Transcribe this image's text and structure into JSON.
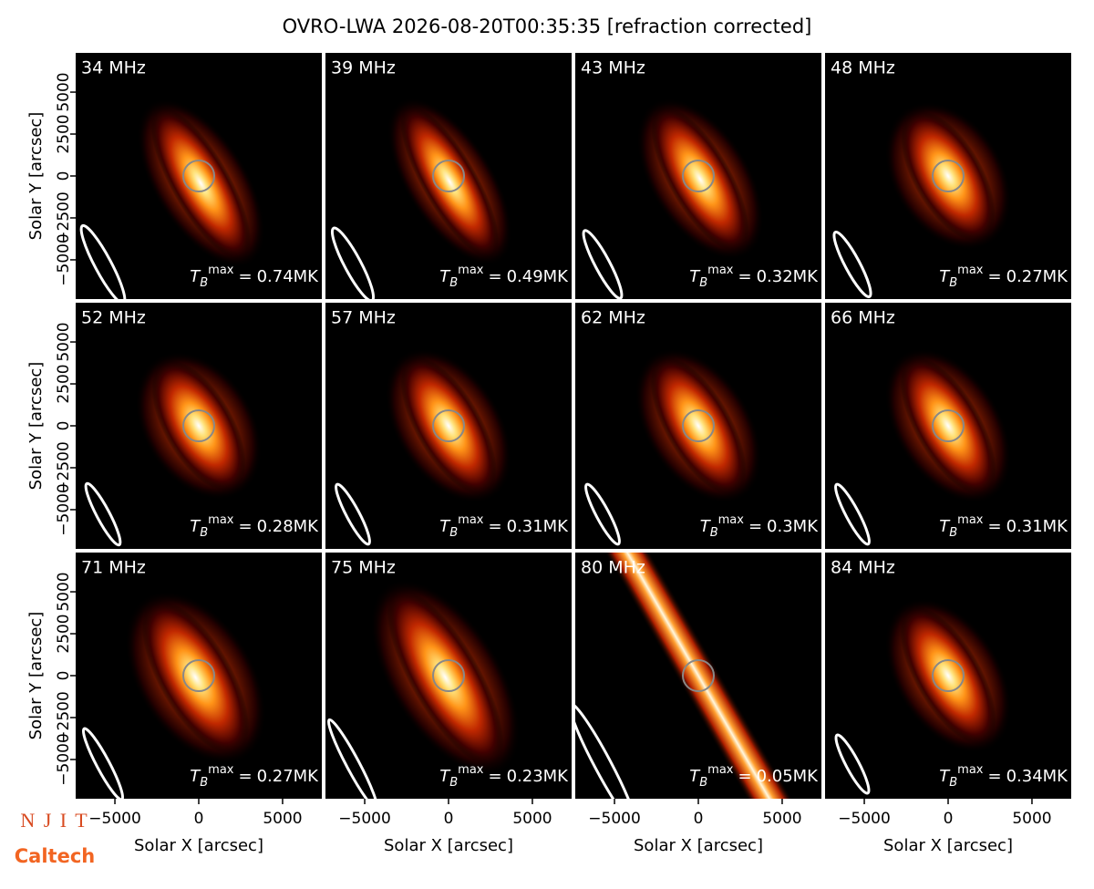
{
  "chart_data": {
    "type": "image-grid",
    "title": "OVRO-LWA 2026-08-20T00:35:35 [refraction corrected]",
    "xlabel": "Solar X [arcsec]",
    "ylabel": "Solar Y [arcsec]",
    "xlim": [
      -7340,
      7340
    ],
    "ylim": [
      -7340,
      7340
    ],
    "xticks": [
      {
        "value": -5000,
        "label": "−5000"
      },
      0,
      5000
    ],
    "yticks": [
      {
        "value": -5000,
        "label": "−5000"
      },
      {
        "value": -2500,
        "label": "−2500"
      },
      0,
      2500,
      5000
    ],
    "tmax_symbol": {
      "base": "T",
      "sub": "B",
      "sup": "max",
      "eq": "="
    },
    "panels": [
      {
        "label": "34 MHz",
        "tmax": "0.74MK"
      },
      {
        "label": "39 MHz",
        "tmax": "0.49MK"
      },
      {
        "label": "43 MHz",
        "tmax": "0.32MK"
      },
      {
        "label": "48 MHz",
        "tmax": "0.27MK"
      },
      {
        "label": "52 MHz",
        "tmax": "0.28MK"
      },
      {
        "label": "57 MHz",
        "tmax": "0.31MK"
      },
      {
        "label": "62 MHz",
        "tmax": "0.3MK"
      },
      {
        "label": "66 MHz",
        "tmax": "0.31MK"
      },
      {
        "label": "71 MHz",
        "tmax": "0.27MK"
      },
      {
        "label": "75 MHz",
        "tmax": "0.23MK"
      },
      {
        "label": "80 MHz",
        "tmax": "0.05MK"
      },
      {
        "label": "84 MHz",
        "tmax": "0.34MK"
      }
    ],
    "logos": [
      "N J I T",
      "Caltech"
    ]
  }
}
